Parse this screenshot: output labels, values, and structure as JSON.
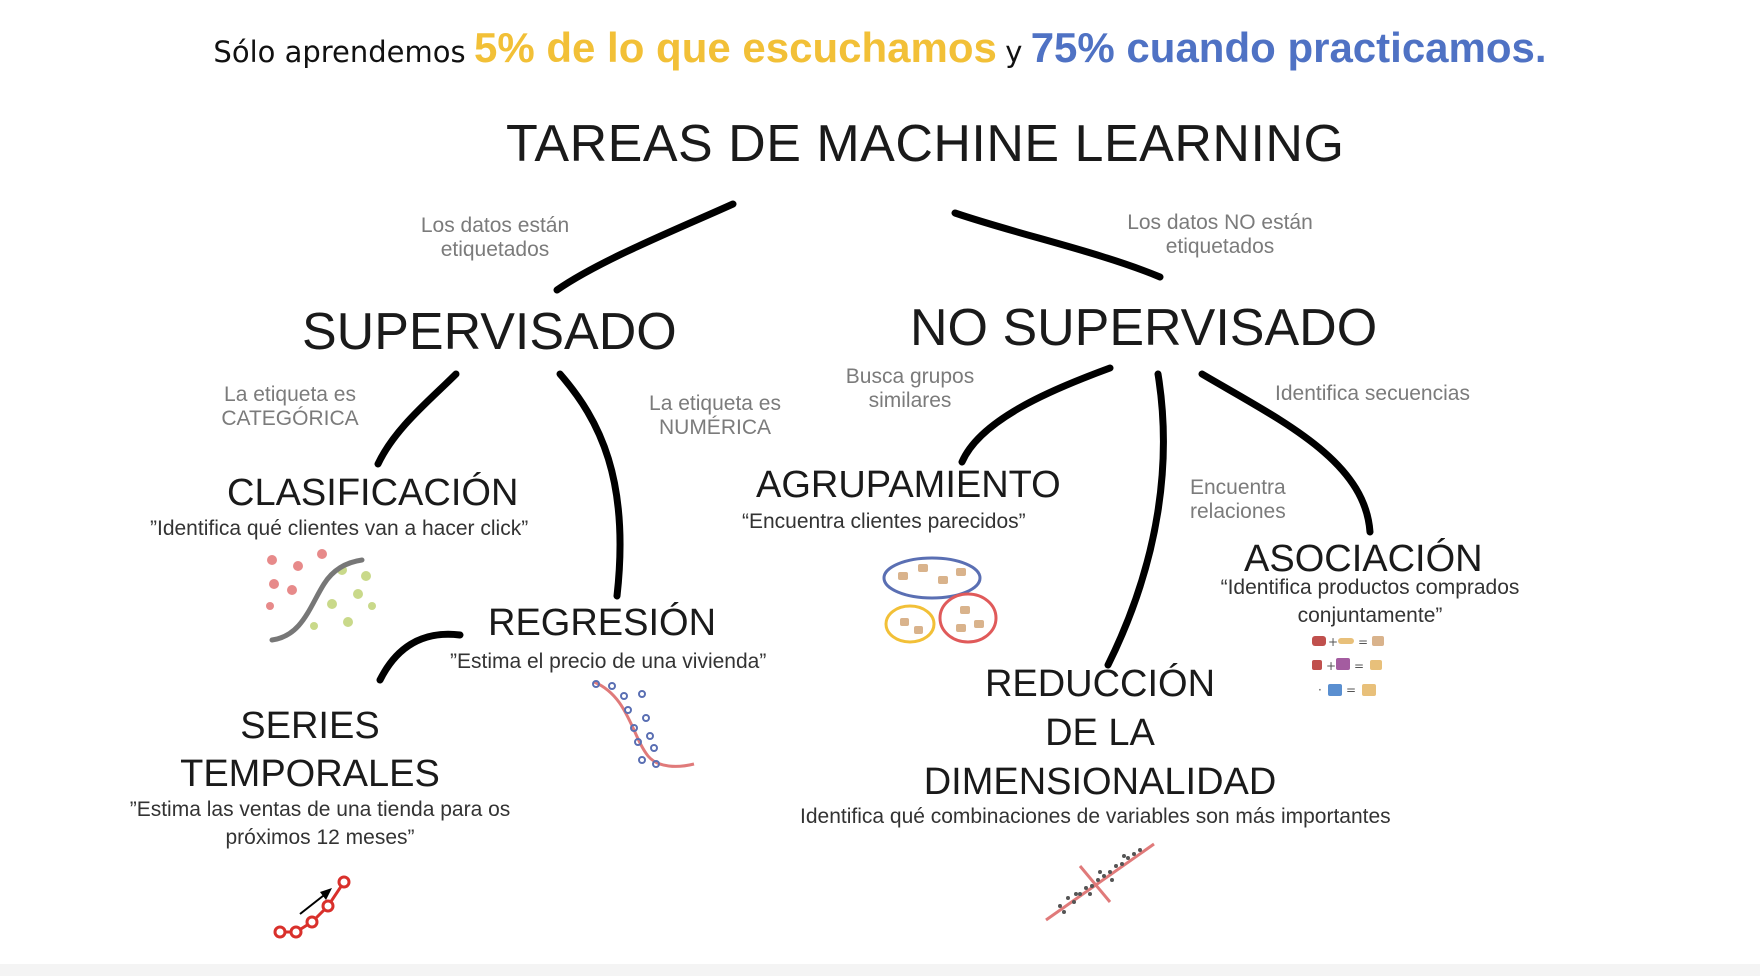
{
  "banner": {
    "part1": "Sólo aprendemos",
    "part2": "5% de lo que escuchamos",
    "part3": "y",
    "part4": "75% cuando practicamos."
  },
  "title": "TAREAS DE MACHINE LEARNING",
  "branches": {
    "supervised": {
      "condition_line1": "Los datos están",
      "condition_line2": "etiquetados",
      "label": "SUPERVISADO"
    },
    "unsupervised": {
      "condition_line1": "Los datos NO están",
      "condition_line2": "etiquetados",
      "label": "NO SUPERVISADO"
    }
  },
  "supervised_tasks": {
    "classification": {
      "condition_line1": "La etiqueta es",
      "condition_line2": "CATEGÓRICA",
      "label": "CLASIFICACIÓN",
      "example": "”Identifica qué clientes van a hacer click”"
    },
    "regression": {
      "condition_line1": "La etiqueta es",
      "condition_line2": "NUMÉRICA",
      "label": "REGRESIÓN",
      "example": "”Estima el precio de una vivienda”"
    },
    "time_series": {
      "label_line1": "SERIES",
      "label_line2": "TEMPORALES",
      "example_line1": "”Estima las ventas de una tienda para os",
      "example_line2": "próximos 12 meses”"
    }
  },
  "unsupervised_tasks": {
    "clustering": {
      "condition_line1": "Busca grupos",
      "condition_line2": "similares",
      "label": "AGRUPAMIENTO",
      "example": "“Encuentra clientes parecidos”"
    },
    "dimensionality": {
      "condition_line1": "Encuentra",
      "condition_line2": "relaciones",
      "label_line1": "REDUCCIÓN",
      "label_line2": "DE LA",
      "label_line3": "DIMENSIONALIDAD",
      "example": "Identifica qué combinaciones de variables son más importantes"
    },
    "association": {
      "condition": "Identifica secuencias",
      "label": "ASOCIACIÓN",
      "example_line1": "“Identifica productos comprados",
      "example_line2": "conjuntamente”"
    }
  },
  "colors": {
    "banner_yellow": "#f2c037",
    "banner_blue": "#4f72c4",
    "connector": "#000000",
    "condition_text": "#7b7b7b",
    "regression_curve": "#e07a7a",
    "points_blue": "#5a6fb3",
    "series_red": "#d9302b"
  },
  "icons": [
    "classification-scatter-icon",
    "regression-curve-icon",
    "time-series-icon",
    "clustering-groups-icon",
    "dimensionality-scatter-icon",
    "association-products-icon"
  ]
}
